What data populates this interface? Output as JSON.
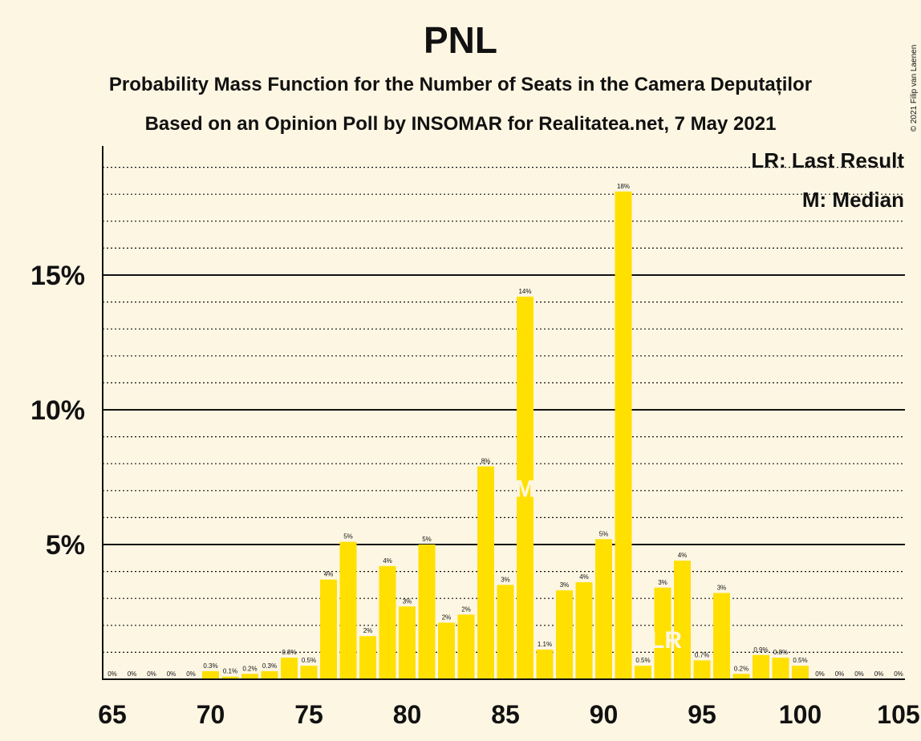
{
  "chart_data": {
    "type": "bar",
    "title": "PNL",
    "subtitle": "Probability Mass Function for the Number of Seats in the Camera Deputaților",
    "subtitle2": "Based on an Opinion Poll by INSOMAR for Realitatea.net, 7 May 2021",
    "credit": "© 2021 Filip van Laenen",
    "legend": {
      "last_result": "LR: Last Result",
      "median": "M: Median",
      "placement": "top-right"
    },
    "bar_color": "#ffe000",
    "background": "#fdf6e3",
    "x": [
      65,
      66,
      67,
      68,
      69,
      70,
      71,
      72,
      73,
      74,
      75,
      76,
      77,
      78,
      79,
      80,
      81,
      82,
      83,
      84,
      85,
      86,
      87,
      88,
      89,
      90,
      91,
      92,
      93,
      94,
      95,
      96,
      97,
      98,
      99,
      100,
      101,
      102,
      103,
      104,
      105
    ],
    "values": [
      0,
      0,
      0,
      0,
      0,
      0.3,
      0.1,
      0.2,
      0.3,
      0.8,
      0.5,
      3.7,
      5.1,
      1.6,
      4.2,
      2.7,
      5.0,
      2.1,
      2.4,
      7.9,
      3.5,
      14.2,
      1.1,
      3.3,
      3.6,
      5.2,
      18.1,
      0.5,
      3.4,
      4.4,
      0.7,
      3.2,
      0.2,
      0.9,
      0.8,
      0.5,
      0,
      0,
      0,
      0,
      0
    ],
    "labels": [
      "0%",
      "0%",
      "0%",
      "0%",
      "0%",
      "0.3%",
      "0.1%",
      "0.2%",
      "0.3%",
      "0.8%",
      "0.5%",
      "4%",
      "5%",
      "2%",
      "4%",
      "3%",
      "5%",
      "2%",
      "2%",
      "8%",
      "3%",
      "14%",
      "1.1%",
      "3%",
      "4%",
      "5%",
      "18%",
      "0.5%",
      "3%",
      "4%",
      "0.7%",
      "3%",
      "0.2%",
      "0.9%",
      "0.8%",
      "0.5%",
      "0%",
      "0%",
      "0%",
      "0%",
      "0%"
    ],
    "median_seat": 86,
    "median_marker": "M",
    "last_result_seat": 93,
    "last_result_marker": "LR",
    "xlim": [
      65,
      105
    ],
    "xticks": [
      65,
      70,
      75,
      80,
      85,
      90,
      95,
      100,
      105
    ],
    "xtick_labels": [
      "65",
      "70",
      "75",
      "80",
      "85",
      "90",
      "95",
      "100",
      "105"
    ],
    "ylim": [
      0,
      19
    ],
    "yticks": [
      5,
      10,
      15
    ],
    "ytick_labels": [
      "5%",
      "10%",
      "15%"
    ],
    "grid": "dotted minor every 1%, solid major every 5%"
  }
}
